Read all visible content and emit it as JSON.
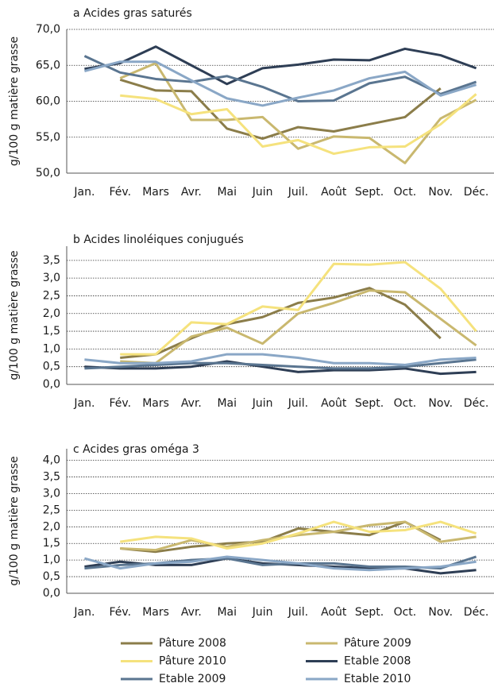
{
  "chart_data": [
    {
      "type": "line",
      "title": "a  Acides gras saturés",
      "y_label": "g/100 g matière grasse",
      "categories": [
        "Jan.",
        "Fév.",
        "Mars",
        "Avr.",
        "Mai",
        "Juin",
        "Juil.",
        "Août",
        "Sept.",
        "Oct.",
        "Nov.",
        "Déc."
      ],
      "ylim": [
        50,
        70
      ],
      "yticks": [
        {
          "value": 50,
          "label": "50,0"
        },
        {
          "value": 55,
          "label": "55,0"
        },
        {
          "value": 60,
          "label": "60,0"
        },
        {
          "value": 65,
          "label": "65,0"
        },
        {
          "value": 70,
          "label": "70,0"
        }
      ],
      "grid": true,
      "series": [
        {
          "name": "Pâture 2008",
          "color": "#8b7d4a",
          "values": [
            null,
            63.0,
            61.5,
            61.4,
            56.2,
            54.8,
            56.4,
            55.8,
            56.8,
            57.8,
            61.8,
            null
          ]
        },
        {
          "name": "Pâture 2009",
          "color": "#c9b86f",
          "values": [
            null,
            63.2,
            65.3,
            57.4,
            57.4,
            57.8,
            53.4,
            55.1,
            54.9,
            51.4,
            57.6,
            60.2
          ]
        },
        {
          "name": "Pâture 2010",
          "color": "#f5e27d",
          "values": [
            null,
            60.8,
            60.3,
            58.2,
            58.9,
            53.7,
            54.6,
            52.7,
            53.6,
            53.7,
            56.8,
            61.0
          ]
        },
        {
          "name": "Etable 2008",
          "color": "#2e3e55",
          "values": [
            64.5,
            65.3,
            67.6,
            65.0,
            62.4,
            64.6,
            65.1,
            65.8,
            65.7,
            67.3,
            66.4,
            64.6
          ]
        },
        {
          "name": "Etable 2009",
          "color": "#5a7590",
          "values": [
            66.3,
            64.0,
            63.1,
            62.7,
            63.5,
            62.0,
            60.0,
            60.1,
            62.5,
            63.4,
            61.0,
            62.7
          ]
        },
        {
          "name": "Etable 2010",
          "color": "#8aa7c6",
          "values": [
            64.2,
            65.5,
            65.5,
            62.9,
            60.4,
            59.4,
            60.5,
            61.5,
            63.2,
            64.1,
            60.8,
            62.3
          ]
        }
      ]
    },
    {
      "type": "line",
      "title": "b  Acides linoléiques conjugués",
      "y_label": "g/100 g matière grasse",
      "categories": [
        "Jan.",
        "Fév.",
        "Mars",
        "Avr.",
        "Mai",
        "Juin",
        "Juil.",
        "Août",
        "Sept.",
        "Oct.",
        "Nov.",
        "Déc."
      ],
      "ylim": [
        0,
        3.9
      ],
      "yticks": [
        {
          "value": 0,
          "label": "0,0"
        },
        {
          "value": 0.5,
          "label": "0,5"
        },
        {
          "value": 1,
          "label": "1,0"
        },
        {
          "value": 1.5,
          "label": "1,5"
        },
        {
          "value": 2,
          "label": "2,0"
        },
        {
          "value": 2.5,
          "label": "2,5"
        },
        {
          "value": 3,
          "label": "3,0"
        },
        {
          "value": 3.5,
          "label": "3,5"
        }
      ],
      "grid": true,
      "series": [
        {
          "color": "#8b7d4a",
          "values": [
            null,
            0.75,
            0.85,
            1.3,
            1.7,
            1.9,
            2.3,
            2.45,
            2.72,
            2.25,
            1.3,
            null
          ]
        },
        {
          "color": "#c9b86f",
          "values": [
            null,
            0.65,
            0.6,
            1.35,
            1.6,
            1.15,
            2.0,
            2.3,
            2.65,
            2.6,
            1.85,
            1.1
          ]
        },
        {
          "color": "#f5e27d",
          "values": [
            null,
            0.85,
            0.85,
            1.75,
            1.7,
            2.2,
            2.1,
            3.4,
            3.38,
            3.45,
            2.7,
            1.5
          ]
        },
        {
          "color": "#2e3e55",
          "values": [
            0.5,
            0.45,
            0.45,
            0.5,
            0.65,
            0.5,
            0.35,
            0.4,
            0.4,
            0.45,
            0.3,
            0.35
          ]
        },
        {
          "color": "#5a7590",
          "values": [
            0.45,
            0.5,
            0.55,
            0.6,
            0.6,
            0.55,
            0.5,
            0.45,
            0.45,
            0.5,
            0.6,
            0.7
          ]
        },
        {
          "color": "#8aa7c6",
          "values": [
            0.7,
            0.6,
            0.6,
            0.65,
            0.85,
            0.85,
            0.75,
            0.6,
            0.6,
            0.55,
            0.7,
            0.75
          ]
        }
      ]
    },
    {
      "type": "line",
      "title": "c  Acides gras oméga 3",
      "y_label": "g/100 g matière grasse",
      "categories": [
        "Jan.",
        "Fév.",
        "Mars",
        "Avr.",
        "Mai",
        "Juin",
        "Juil.",
        "Août",
        "Sept.",
        "Oct.",
        "Nov.",
        "Déc."
      ],
      "ylim": [
        0,
        4.35
      ],
      "yticks": [
        {
          "value": 0,
          "label": "0,0"
        },
        {
          "value": 0.5,
          "label": "0,5"
        },
        {
          "value": 1,
          "label": "1,0"
        },
        {
          "value": 1.5,
          "label": "1,5"
        },
        {
          "value": 2,
          "label": "2,0"
        },
        {
          "value": 2.5,
          "label": "2,5"
        },
        {
          "value": 3,
          "label": "3,0"
        },
        {
          "value": 3.5,
          "label": "3,5"
        },
        {
          "value": 4,
          "label": "4,0"
        }
      ],
      "grid": true,
      "series": [
        {
          "color": "#8b7d4a",
          "values": [
            null,
            1.35,
            1.25,
            1.4,
            1.5,
            1.55,
            1.95,
            1.85,
            1.75,
            2.15,
            1.6,
            null
          ]
        },
        {
          "color": "#c9b86f",
          "values": [
            null,
            1.35,
            1.3,
            1.6,
            1.4,
            1.6,
            1.75,
            1.85,
            2.05,
            2.15,
            1.55,
            1.7
          ]
        },
        {
          "color": "#f5e27d",
          "values": [
            null,
            1.55,
            1.7,
            1.65,
            1.35,
            1.5,
            1.8,
            2.15,
            1.85,
            1.9,
            2.15,
            1.8
          ]
        },
        {
          "color": "#2e3e55",
          "values": [
            0.8,
            0.95,
            0.85,
            0.85,
            1.05,
            0.9,
            0.85,
            0.8,
            0.75,
            0.75,
            0.6,
            0.7
          ]
        },
        {
          "color": "#5a7590",
          "values": [
            0.75,
            0.85,
            0.9,
            1.0,
            1.05,
            0.85,
            0.9,
            0.9,
            0.8,
            0.8,
            0.75,
            1.1
          ]
        },
        {
          "color": "#8aa7c6",
          "values": [
            1.05,
            0.75,
            0.9,
            0.95,
            1.1,
            1.0,
            0.9,
            0.75,
            0.7,
            0.75,
            0.8,
            0.95
          ]
        }
      ]
    }
  ]
}
